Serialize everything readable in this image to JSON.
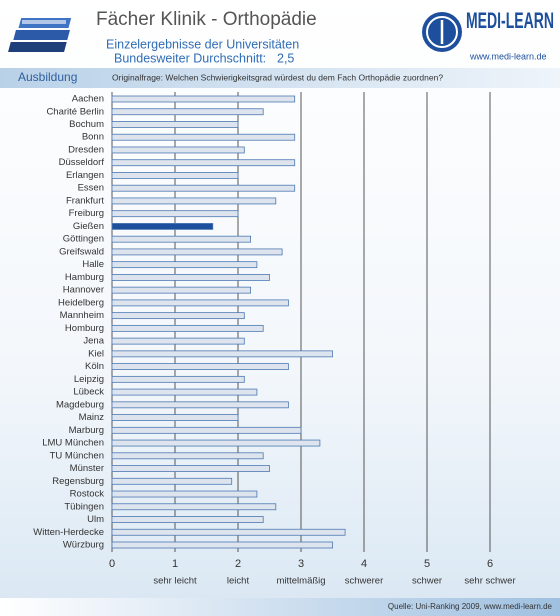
{
  "chart_data": {
    "type": "bar",
    "orientation": "horizontal",
    "title": "Fächer Klinik - Orthopädie",
    "subtitle": "Einzelergebnisse der Universitäten",
    "average_label": "Bundesweiter Durchschnitt:",
    "average": {
      "value": 2.5,
      "label": "2,5"
    },
    "logo": "MEDI-LEARN",
    "logo_url": "www.medi-learn.de",
    "section": "Ausbildung",
    "question": "Originalfrage: Welchen Schwierigkeitsgrad würdest du dem Fach Orthopädie zuordnen?",
    "source": "Quelle: Uni-Ranking 2009, www.medi-learn.de",
    "categories": [
      "Aachen",
      "Charité Berlin",
      "Bochum",
      "Bonn",
      "Dresden",
      "Düsseldorf",
      "Erlangen",
      "Essen",
      "Frankfurt",
      "Freiburg",
      "Gießen",
      "Göttingen",
      "Greifswald",
      "Halle",
      "Hamburg",
      "Hannover",
      "Heidelberg",
      "Mannheim",
      "Homburg",
      "Jena",
      "Kiel",
      "Köln",
      "Leipzig",
      "Lübeck",
      "Magdeburg",
      "Mainz",
      "Marburg",
      "LMU München",
      "TU München",
      "Münster",
      "Regensburg",
      "Rostock",
      "Tübingen",
      "Ulm",
      "Witten-Herdecke",
      "Würzburg"
    ],
    "values": [
      2.9,
      2.4,
      2.0,
      2.9,
      2.1,
      2.9,
      2.0,
      2.9,
      2.6,
      2.0,
      1.6,
      2.2,
      2.7,
      2.3,
      2.5,
      2.2,
      2.8,
      2.1,
      2.4,
      2.1,
      3.5,
      2.8,
      2.1,
      2.3,
      2.8,
      2.0,
      3.0,
      3.3,
      2.4,
      2.5,
      1.9,
      2.3,
      2.6,
      2.4,
      3.7,
      3.5
    ],
    "color": "#dde4ee",
    "highlight": "Gießen",
    "highlight_color": "#1e4f9c",
    "xlim": [
      0,
      6
    ],
    "xticks": [
      0,
      1,
      2,
      3,
      4,
      5,
      6
    ],
    "xtick_names": [
      {
        "value": 1,
        "label": "sehr leicht"
      },
      {
        "value": 2,
        "label": "leicht"
      },
      {
        "value": 3,
        "label": "mittelmäßig"
      },
      {
        "value": 4,
        "label": "schwerer"
      },
      {
        "value": 5,
        "label": "schwer"
      },
      {
        "value": 6,
        "label": "sehr schwer"
      }
    ],
    "grid": true
  }
}
